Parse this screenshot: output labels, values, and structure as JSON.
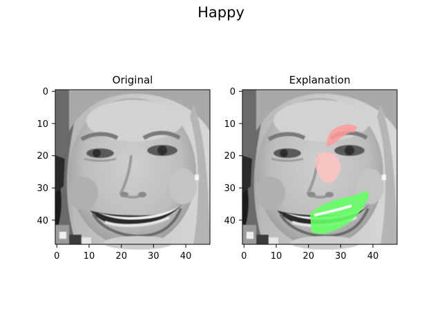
{
  "figure": {
    "suptitle": "Happy"
  },
  "panels": [
    {
      "id": "original",
      "title": "Original",
      "xticks": [
        "0",
        "10",
        "20",
        "30",
        "40"
      ],
      "yticks": [
        "0",
        "10",
        "20",
        "30",
        "40"
      ]
    },
    {
      "id": "explanation",
      "title": "Explanation",
      "xticks": [
        "0",
        "10",
        "20",
        "30",
        "40"
      ],
      "yticks": [
        "0",
        "10",
        "20",
        "30",
        "40"
      ]
    }
  ],
  "image": {
    "pixel_grid": 48,
    "tick_values": [
      0,
      10,
      20,
      30,
      40
    ]
  },
  "colors": {
    "positive_region": "#66ff66",
    "negative_region": "#ff9a9a",
    "axis": "#000000",
    "background": "#ffffff"
  }
}
